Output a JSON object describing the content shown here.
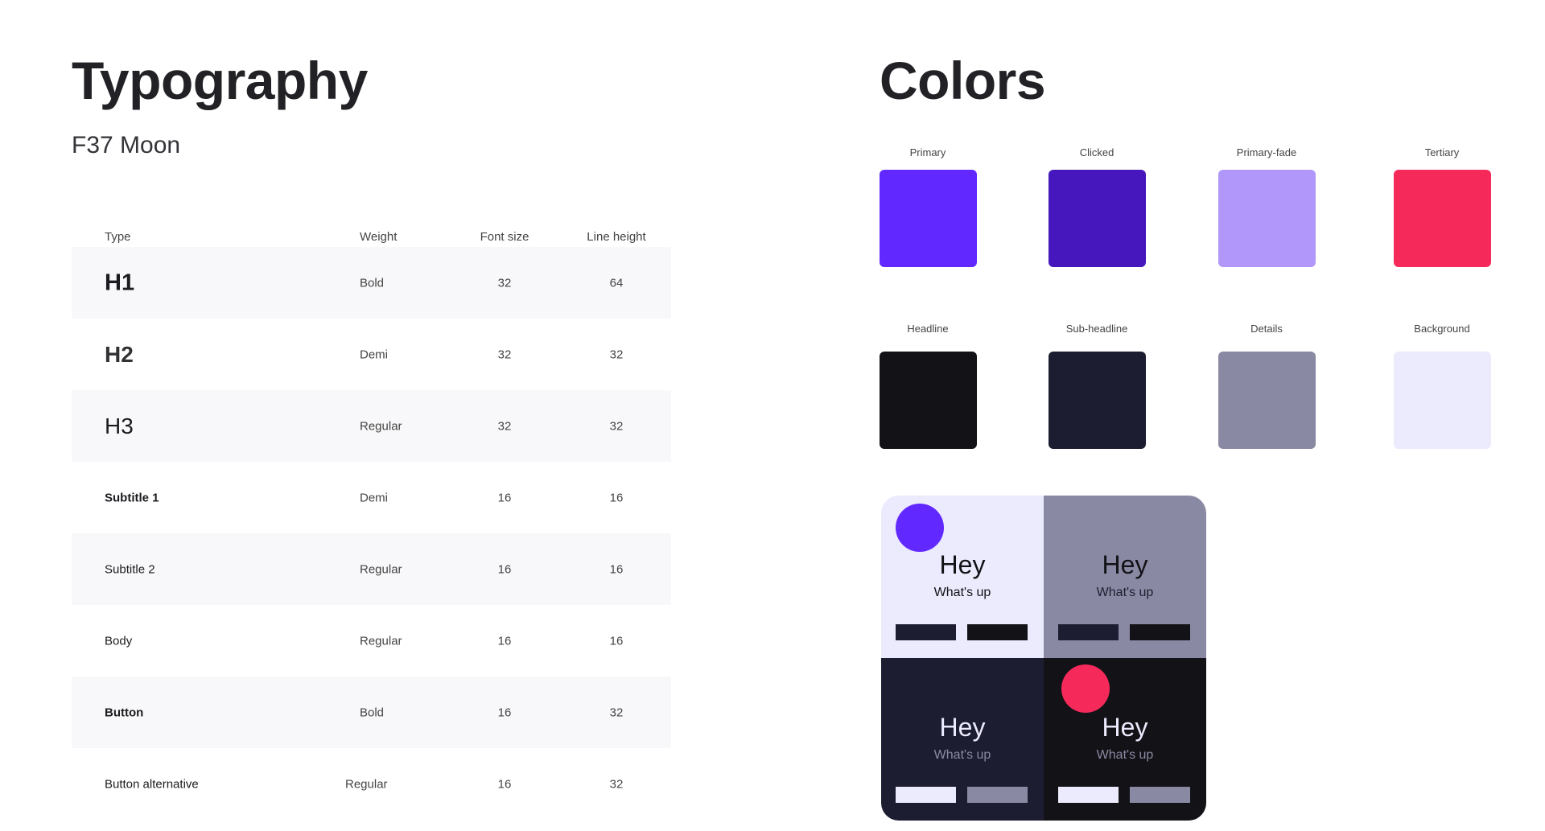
{
  "typography": {
    "title": "Typography",
    "font_name": "F37 Moon",
    "headers": [
      "Type",
      "Weight",
      "Font size",
      "Line height"
    ],
    "rows": [
      {
        "type": "H1",
        "weight": "Bold",
        "font_size": "32",
        "line_height": "64"
      },
      {
        "type": "H2",
        "weight": "Demi",
        "font_size": "32",
        "line_height": "32"
      },
      {
        "type": "H3",
        "weight": "Regular",
        "font_size": "32",
        "line_height": "32"
      },
      {
        "type": "Subtitle 1",
        "weight": "Demi",
        "font_size": "16",
        "line_height": "16"
      },
      {
        "type": "Subtitle 2",
        "weight": "Regular",
        "font_size": "16",
        "line_height": "16"
      },
      {
        "type": "Body",
        "weight": "Regular",
        "font_size": "16",
        "line_height": "16"
      },
      {
        "type": "Button",
        "weight": "Bold",
        "font_size": "16",
        "line_height": "32"
      },
      {
        "type": "Button alternative",
        "weight": "Regular",
        "font_size": "16",
        "line_height": "32"
      }
    ]
  },
  "colors": {
    "title": "Colors",
    "swatches": [
      {
        "name": "Primary",
        "hex": "#6129FF"
      },
      {
        "name": "Clicked",
        "hex": "#4517BD"
      },
      {
        "name": "Primary-fade",
        "hex": "#B197FA"
      },
      {
        "name": "Tertiary",
        "hex": "#F62A5A"
      },
      {
        "name": "Headline",
        "hex": "#131217"
      },
      {
        "name": "Sub-headline",
        "hex": "#1D1D31"
      },
      {
        "name": "Details",
        "hex": "#8A89A3"
      },
      {
        "name": "Background",
        "hex": "#ECEBFD"
      }
    ],
    "preview": {
      "heading": "Hey",
      "subheading": "What's up"
    }
  }
}
